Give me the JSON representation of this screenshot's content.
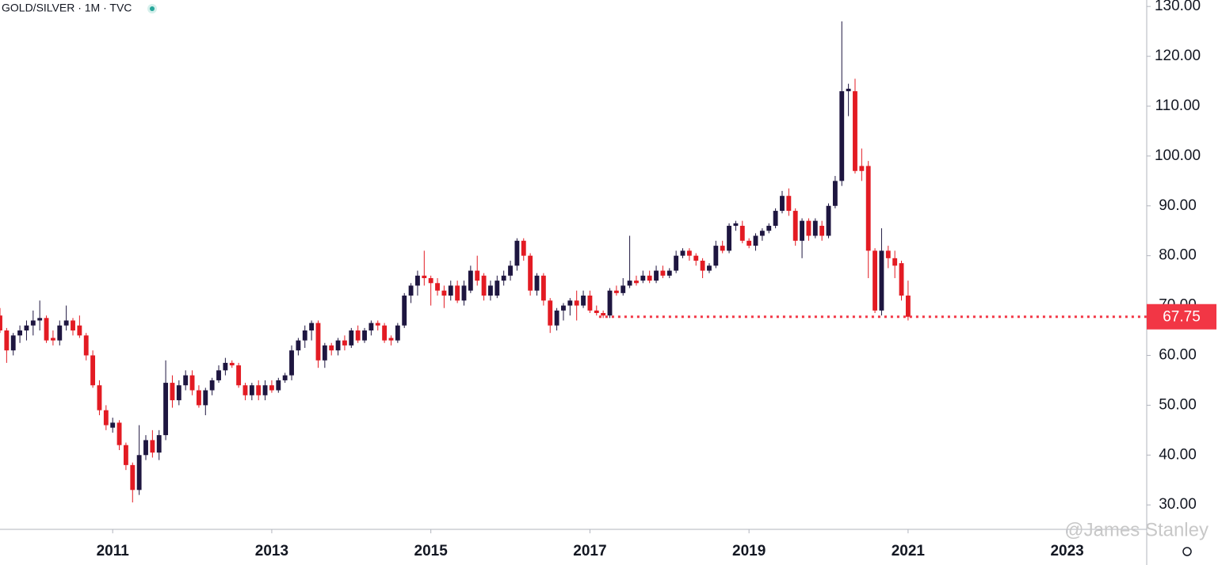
{
  "chart_data": {
    "type": "candlestick",
    "title": "GOLD/SILVER · 1M · TVC",
    "watermark": "@James Stanley",
    "up_color": "#1e1640",
    "down_color": "#e31b23",
    "x": [
      "2009-08",
      "2009-09",
      "2009-10",
      "2009-11",
      "2009-12",
      "2010-01",
      "2010-02",
      "2010-03",
      "2010-04",
      "2010-05",
      "2010-06",
      "2010-07",
      "2010-08",
      "2010-09",
      "2010-10",
      "2010-11",
      "2010-12",
      "2011-01",
      "2011-02",
      "2011-03",
      "2011-04",
      "2011-05",
      "2011-06",
      "2011-07",
      "2011-08",
      "2011-09",
      "2011-10",
      "2011-11",
      "2011-12",
      "2012-01",
      "2012-02",
      "2012-03",
      "2012-04",
      "2012-05",
      "2012-06",
      "2012-07",
      "2012-08",
      "2012-09",
      "2012-10",
      "2012-11",
      "2012-12",
      "2013-01",
      "2013-02",
      "2013-03",
      "2013-04",
      "2013-05",
      "2013-06",
      "2013-07",
      "2013-08",
      "2013-09",
      "2013-10",
      "2013-11",
      "2013-12",
      "2014-01",
      "2014-02",
      "2014-03",
      "2014-04",
      "2014-05",
      "2014-06",
      "2014-07",
      "2014-08",
      "2014-09",
      "2014-10",
      "2014-11",
      "2014-12",
      "2015-01",
      "2015-02",
      "2015-03",
      "2015-04",
      "2015-05",
      "2015-06",
      "2015-07",
      "2015-08",
      "2015-09",
      "2015-10",
      "2015-11",
      "2015-12",
      "2016-01",
      "2016-02",
      "2016-03",
      "2016-04",
      "2016-05",
      "2016-06",
      "2016-07",
      "2016-08",
      "2016-09",
      "2016-10",
      "2016-11",
      "2016-12",
      "2017-01",
      "2017-02",
      "2017-03",
      "2017-04",
      "2017-05",
      "2017-06",
      "2017-07",
      "2017-08",
      "2017-09",
      "2017-10",
      "2017-11",
      "2017-12",
      "2018-01",
      "2018-02",
      "2018-03",
      "2018-04",
      "2018-05",
      "2018-06",
      "2018-07",
      "2018-08",
      "2018-09",
      "2018-10",
      "2018-11",
      "2018-12",
      "2019-01",
      "2019-02",
      "2019-03",
      "2019-04",
      "2019-05",
      "2019-06",
      "2019-07",
      "2019-08",
      "2019-09",
      "2019-10",
      "2019-11",
      "2019-12",
      "2020-01",
      "2020-02",
      "2020-03",
      "2020-04",
      "2020-05",
      "2020-06",
      "2020-07",
      "2020-08",
      "2020-09",
      "2020-10",
      "2020-11",
      "2020-12",
      "2021-01"
    ],
    "open": [
      68,
      65,
      61,
      64,
      65,
      66,
      67,
      67.5,
      63.5,
      63,
      66,
      67,
      66,
      64,
      60,
      54,
      49,
      45.5,
      46.5,
      42,
      38,
      33,
      40,
      43,
      40.5,
      44,
      54.5,
      51,
      54,
      56,
      53,
      50,
      53,
      55,
      57,
      58.5,
      58,
      54,
      52,
      54,
      52,
      54,
      53,
      55,
      56,
      61,
      63,
      65,
      66.5,
      59,
      62,
      61,
      63,
      62,
      65,
      63,
      65,
      66.5,
      66,
      63.5,
      63,
      66,
      72,
      74,
      76,
      75.5,
      74.5,
      73,
      72,
      74,
      71,
      73,
      77,
      76,
      72,
      72,
      75,
      76,
      78,
      83,
      80,
      73,
      76,
      71,
      66,
      69,
      70,
      71,
      70,
      72,
      69,
      68.5,
      68,
      73,
      72.5,
      74,
      75,
      75,
      76,
      75,
      77,
      76,
      77,
      80,
      81,
      80,
      79,
      77,
      78,
      82,
      81,
      86,
      86,
      83,
      82,
      84,
      85,
      86,
      89,
      92,
      89,
      83,
      87,
      84,
      86,
      84,
      90,
      95,
      113,
      113,
      98,
      98,
      81,
      69,
      81,
      79.5,
      78.5,
      72
    ],
    "high": [
      69.5,
      65.5,
      64.5,
      66,
      67,
      69,
      71,
      68,
      65,
      67,
      70,
      67.5,
      68,
      64.5,
      61,
      55,
      50,
      47.5,
      47,
      42.5,
      38.5,
      46,
      44,
      45,
      45,
      59,
      56,
      55,
      57,
      57,
      54,
      53.5,
      55.5,
      58,
      59.5,
      59,
      58.5,
      54.5,
      54.5,
      55,
      55,
      55,
      55.5,
      56.5,
      62,
      63.5,
      66,
      67,
      67,
      62.5,
      62.5,
      63.5,
      64,
      65.5,
      66,
      65.5,
      67,
      67,
      66.5,
      64,
      66.5,
      72.5,
      74.5,
      77,
      81,
      76,
      75.5,
      74,
      75,
      75,
      75,
      78,
      80,
      76.5,
      75,
      76,
      77,
      79,
      83.5,
      83.5,
      80.5,
      76.5,
      76.5,
      71.5,
      69.5,
      70.5,
      71.5,
      73,
      73,
      73,
      70,
      69,
      73.5,
      74,
      75.5,
      84,
      76,
      77,
      77,
      78,
      78,
      77.5,
      81,
      81.5,
      81.5,
      80.5,
      79.5,
      78.5,
      83,
      83,
      86.5,
      87,
      87,
      83.5,
      84.5,
      85.5,
      86.5,
      89.5,
      93,
      93.5,
      89.5,
      87.5,
      87.5,
      87.5,
      87,
      90.5,
      96,
      127,
      114.5,
      115.5,
      101.5,
      99,
      81.5,
      85.5,
      82,
      81,
      79,
      75
    ],
    "low": [
      64.5,
      58.5,
      60,
      62.5,
      63,
      64,
      65,
      62.5,
      62,
      62,
      65,
      64,
      63.5,
      59,
      53.5,
      48,
      45,
      44.5,
      41,
      37,
      30.5,
      32,
      39,
      39.5,
      39,
      43,
      49.5,
      50,
      53,
      52,
      49.5,
      48,
      52,
      54.5,
      56,
      57.5,
      53.5,
      51,
      51,
      51,
      51,
      52.5,
      52.5,
      54.5,
      55,
      60,
      61.5,
      63,
      57.5,
      57.5,
      60,
      60,
      61,
      61.5,
      62.5,
      62.5,
      64,
      65,
      62.5,
      62,
      62.5,
      65.5,
      70.5,
      72,
      74,
      70,
      72,
      69.5,
      71,
      70.5,
      70,
      72.5,
      74,
      71,
      71,
      71.5,
      74,
      75,
      77,
      79,
      72,
      72,
      70,
      64.5,
      65,
      67,
      68,
      67,
      69.5,
      68.5,
      68,
      67.5,
      67.5,
      72,
      72,
      73.5,
      74,
      74.5,
      74.5,
      74.5,
      75.5,
      75.5,
      76.5,
      79.5,
      79,
      78,
      75.5,
      76.5,
      77.5,
      80.5,
      80.5,
      85,
      82.5,
      81.5,
      81,
      83,
      84.5,
      85.5,
      88.5,
      88,
      82,
      79.5,
      83,
      83.5,
      83,
      83.5,
      89.5,
      94,
      108,
      96.5,
      95,
      75.5,
      68.5,
      68,
      77.5,
      75.5,
      71,
      67
    ],
    "close": [
      65,
      61,
      64,
      65,
      66,
      67,
      67.5,
      63,
      63,
      66,
      67,
      65,
      64,
      60,
      54,
      49,
      46,
      46.5,
      42,
      38,
      33,
      40,
      43,
      40.5,
      44,
      54.5,
      51,
      54,
      56,
      53,
      50,
      53,
      55,
      57,
      58.5,
      58,
      54,
      52,
      54,
      52,
      54,
      53,
      55,
      56,
      61,
      63,
      65,
      66.5,
      59,
      62,
      61,
      63,
      62,
      65,
      63,
      65,
      66.5,
      66,
      63,
      63,
      66,
      72,
      74,
      76,
      75.5,
      74.5,
      73,
      72,
      74,
      71,
      74,
      77,
      75,
      72,
      74,
      75,
      76,
      78,
      83,
      80,
      73,
      76,
      71,
      66,
      69,
      70,
      71,
      70,
      72,
      69,
      68.5,
      68,
      73,
      72.5,
      74,
      75,
      74.5,
      76,
      75,
      77,
      76,
      77,
      80,
      81,
      80,
      79,
      77,
      78,
      82,
      81,
      86,
      86.5,
      83,
      82,
      84,
      85,
      86,
      89,
      92,
      89,
      83,
      87,
      84,
      87,
      84,
      90,
      95,
      113,
      113.5,
      97,
      97,
      81,
      69,
      81,
      79.5,
      78,
      72,
      67.75
    ],
    "last_price": 67.75,
    "last_price_color": "#f23645",
    "xlim": [
      "2009-08",
      "2024-01"
    ],
    "xticks": [
      {
        "value": "2011-01",
        "label": "2011"
      },
      {
        "value": "2013-01",
        "label": "2013"
      },
      {
        "value": "2015-01",
        "label": "2015"
      },
      {
        "value": "2017-01",
        "label": "2017"
      },
      {
        "value": "2019-01",
        "label": "2019"
      },
      {
        "value": "2021-01",
        "label": "2021"
      },
      {
        "value": "2023-01",
        "label": "2023"
      }
    ],
    "ylim": [
      25.1,
      131.3
    ],
    "yticks": [
      {
        "value": 30,
        "label": "30.00"
      },
      {
        "value": 40,
        "label": "40.00"
      },
      {
        "value": 50,
        "label": "50.00"
      },
      {
        "value": 60,
        "label": "60.00"
      },
      {
        "value": 70,
        "label": "70.00"
      },
      {
        "value": 80,
        "label": "80.00"
      },
      {
        "value": 90,
        "label": "90.00"
      },
      {
        "value": 100,
        "label": "100.00"
      },
      {
        "value": 110,
        "label": "110.00"
      },
      {
        "value": 120,
        "label": "120.00"
      },
      {
        "value": 130,
        "label": "130.00"
      }
    ]
  }
}
